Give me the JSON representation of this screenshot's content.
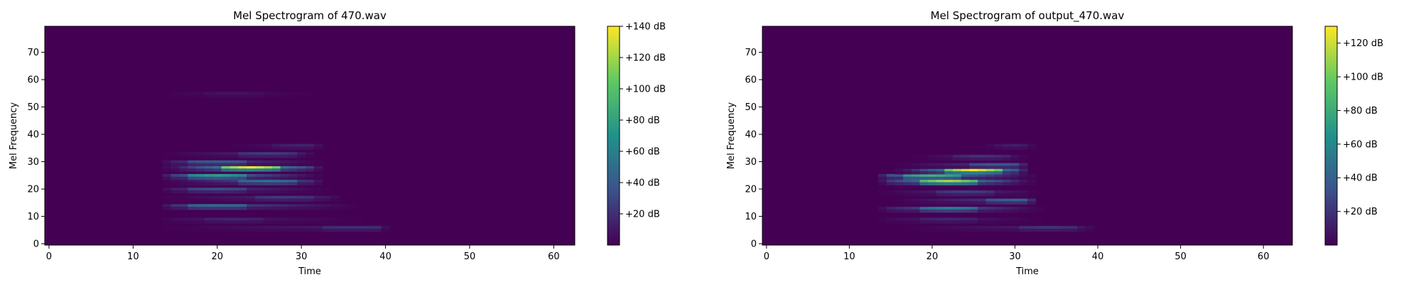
{
  "chart_data": [
    {
      "type": "heatmap",
      "title": "Mel Spectrogram of 470.wav",
      "xlabel": "Time",
      "ylabel": "Mel Frequency",
      "xlim": [
        -0.5,
        62.5
      ],
      "ylim": [
        -0.5,
        79.5
      ],
      "xticks": [
        0,
        10,
        20,
        30,
        40,
        50,
        60
      ],
      "yticks": [
        0,
        10,
        20,
        30,
        40,
        50,
        60,
        70
      ],
      "colorbar": {
        "vmin": 0,
        "vmax": 140,
        "ticks": [
          20,
          40,
          60,
          80,
          100,
          120,
          140
        ],
        "format": "+%d dB"
      },
      "colormap": [
        "#440154",
        "#3b528b",
        "#21918c",
        "#5ec962",
        "#fde725"
      ],
      "bands": [
        {
          "mel": 6,
          "t_start": 14,
          "t_end": 40,
          "peak_t": 36,
          "value": 20
        },
        {
          "mel": 9,
          "t_start": 14,
          "t_end": 37,
          "peak_t": 22,
          "value": 15
        },
        {
          "mel": 14,
          "t_start": 14,
          "t_end": 36,
          "peak_t": 20,
          "value": 48
        },
        {
          "mel": 17,
          "t_start": 14,
          "t_end": 34,
          "peak_t": 28,
          "value": 25
        },
        {
          "mel": 20,
          "t_start": 14,
          "t_end": 33,
          "peak_t": 20,
          "value": 32
        },
        {
          "mel": 23,
          "t_start": 14,
          "t_end": 32,
          "peak_t": 26,
          "value": 55
        },
        {
          "mel": 25,
          "t_start": 14,
          "t_end": 32,
          "peak_t": 20,
          "value": 78
        },
        {
          "mel": 28,
          "t_start": 14,
          "t_end": 32,
          "peak_t": 24,
          "value": 138
        },
        {
          "mel": 30,
          "t_start": 14,
          "t_end": 32,
          "peak_t": 20,
          "value": 40
        },
        {
          "mel": 33,
          "t_start": 14,
          "t_end": 31,
          "peak_t": 26,
          "value": 25
        },
        {
          "mel": 36,
          "t_start": 22,
          "t_end": 32,
          "peak_t": 30,
          "value": 15
        },
        {
          "mel": 55,
          "t_start": 14,
          "t_end": 32,
          "peak_t": 22,
          "value": 8
        }
      ]
    },
    {
      "type": "heatmap",
      "title": "Mel Spectrogram of output_470.wav",
      "xlabel": "Time",
      "ylabel": "Mel Frequency",
      "xlim": [
        -0.5,
        63.5
      ],
      "ylim": [
        -0.5,
        79.5
      ],
      "xticks": [
        0,
        10,
        20,
        30,
        40,
        50,
        60
      ],
      "yticks": [
        0,
        10,
        20,
        30,
        40,
        50,
        60,
        70
      ],
      "colorbar": {
        "vmin": 0,
        "vmax": 130,
        "ticks": [
          20,
          40,
          60,
          80,
          100,
          120
        ],
        "format": "+%d dB"
      },
      "colormap": [
        "#440154",
        "#3b528b",
        "#21918c",
        "#5ec962",
        "#fde725"
      ],
      "bands": [
        {
          "mel": 6,
          "t_start": 17,
          "t_end": 39,
          "peak_t": 34,
          "value": 20
        },
        {
          "mel": 9,
          "t_start": 14,
          "t_end": 33,
          "peak_t": 22,
          "value": 15
        },
        {
          "mel": 13,
          "t_start": 14,
          "t_end": 33,
          "peak_t": 22,
          "value": 55
        },
        {
          "mel": 16,
          "t_start": 16,
          "t_end": 32,
          "peak_t": 30,
          "value": 40
        },
        {
          "mel": 19,
          "t_start": 14,
          "t_end": 32,
          "peak_t": 24,
          "value": 25
        },
        {
          "mel": 23,
          "t_start": 14,
          "t_end": 32,
          "peak_t": 22,
          "value": 115
        },
        {
          "mel": 25,
          "t_start": 14,
          "t_end": 32,
          "peak_t": 20,
          "value": 85
        },
        {
          "mel": 27,
          "t_start": 16,
          "t_end": 31,
          "peak_t": 25,
          "value": 130
        },
        {
          "mel": 29,
          "t_start": 16,
          "t_end": 31,
          "peak_t": 28,
          "value": 35
        },
        {
          "mel": 32,
          "t_start": 18,
          "t_end": 31,
          "peak_t": 26,
          "value": 20
        },
        {
          "mel": 36,
          "t_start": 26,
          "t_end": 32,
          "peak_t": 30,
          "value": 12
        }
      ]
    }
  ]
}
